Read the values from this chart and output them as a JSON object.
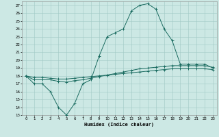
{
  "title": "",
  "xlabel": "Humidex (Indice chaleur)",
  "background_color": "#cce8e4",
  "grid_color": "#a0c8c4",
  "line_color": "#1a6b60",
  "xlim": [
    -0.5,
    23.5
  ],
  "ylim": [
    13,
    27.5
  ],
  "yticks": [
    13,
    14,
    15,
    16,
    17,
    18,
    19,
    20,
    21,
    22,
    23,
    24,
    25,
    26,
    27
  ],
  "xticks": [
    0,
    1,
    2,
    3,
    4,
    5,
    6,
    7,
    8,
    9,
    10,
    11,
    12,
    13,
    14,
    15,
    16,
    17,
    18,
    19,
    20,
    21,
    22,
    23
  ],
  "line1_x": [
    0,
    1,
    2,
    3,
    4,
    5,
    6,
    7,
    8,
    9,
    10,
    11,
    12,
    13,
    14,
    15,
    16,
    17,
    18,
    19,
    20,
    21,
    22,
    23
  ],
  "line1_y": [
    18,
    17,
    17,
    16,
    14,
    13,
    14.5,
    17,
    17.5,
    20.5,
    23,
    23.5,
    24,
    26.3,
    27,
    27.2,
    26.5,
    24,
    22.5,
    19.5,
    19.5,
    19.5,
    19.5,
    19
  ],
  "line2_x": [
    0,
    1,
    2,
    3,
    4,
    5,
    6,
    7,
    8,
    9,
    10,
    11,
    12,
    13,
    14,
    15,
    16,
    17,
    18,
    19,
    20,
    21,
    22,
    23
  ],
  "line2_y": [
    18,
    17.5,
    17.5,
    17.5,
    17.3,
    17.2,
    17.4,
    17.5,
    17.7,
    17.9,
    18.1,
    18.3,
    18.5,
    18.7,
    18.9,
    19.0,
    19.1,
    19.2,
    19.3,
    19.3,
    19.3,
    19.3,
    19.3,
    19.1
  ],
  "line3_x": [
    0,
    1,
    2,
    3,
    4,
    5,
    6,
    7,
    8,
    9,
    10,
    11,
    12,
    13,
    14,
    15,
    16,
    17,
    18,
    19,
    20,
    21,
    22,
    23
  ],
  "line3_y": [
    18,
    17.8,
    17.8,
    17.7,
    17.6,
    17.6,
    17.7,
    17.8,
    17.9,
    18.0,
    18.1,
    18.2,
    18.3,
    18.4,
    18.5,
    18.6,
    18.7,
    18.8,
    18.9,
    18.9,
    18.9,
    18.9,
    18.9,
    18.8
  ]
}
